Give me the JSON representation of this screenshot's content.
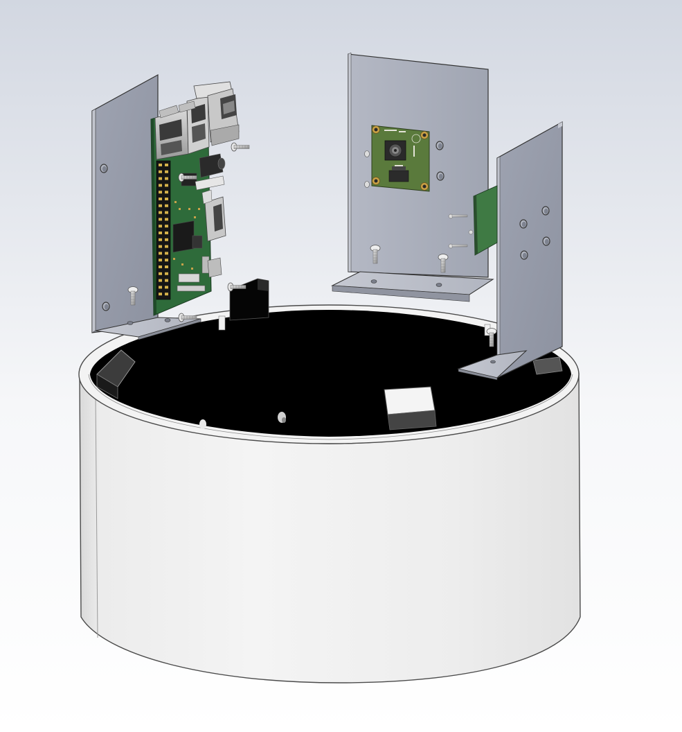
{
  "colors": {
    "background_top": "#d2d7e1",
    "background_bottom": "#ffffff",
    "enclosure_white": "#f0f0f0",
    "enclosure_interior": "#000000",
    "bracket_gray": "#969baa",
    "pcb_green": "#2e6b3a",
    "camera_pcb_green": "#5a7a3c",
    "connector_silver": "#c8c8c8"
  },
  "icons": {
    "raspberry_pi": "raspberry-pi-board-icon",
    "camera": "camera-module-icon",
    "screw": "screw-icon"
  },
  "parts": {
    "enclosure": "cylindrical-base-enclosure",
    "left_bracket": "l-bracket-left",
    "center_bracket": "l-bracket-camera",
    "right_bracket": "l-bracket-right"
  }
}
